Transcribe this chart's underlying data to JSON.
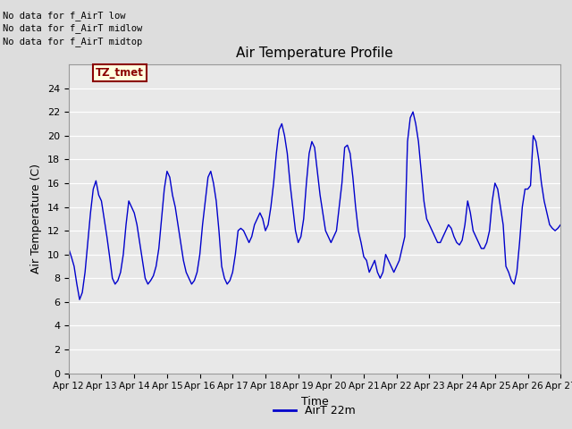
{
  "title": "Air Temperature Profile",
  "xlabel": "Time",
  "ylabel": "Air Temperature (C)",
  "line_color": "#0000cc",
  "line_label": "AirT 22m",
  "ylim": [
    0,
    26
  ],
  "yticks": [
    0,
    2,
    4,
    6,
    8,
    10,
    12,
    14,
    16,
    18,
    20,
    22,
    24
  ],
  "background_color": "#dddddd",
  "plot_bg_color": "#e8e8e8",
  "text_annotations": [
    "No data for f_AirT low",
    "No data for f_AirT midlow",
    "No data for f_AirT midtop"
  ],
  "tz_label": "TZ_tmet",
  "x_tick_labels": [
    "Apr 12",
    "Apr 13",
    "Apr 14",
    "Apr 15",
    "Apr 16",
    "Apr 17",
    "Apr 18",
    "Apr 19",
    "Apr 20",
    "Apr 21",
    "Apr 22",
    "Apr 23",
    "Apr 24",
    "Apr 25",
    "Apr 26",
    "Apr 27"
  ],
  "time_values": [
    0,
    24,
    48,
    72,
    96,
    120,
    144,
    168,
    192,
    216,
    240,
    264,
    288,
    312,
    336,
    360
  ],
  "temperature_data_hours": [
    0,
    2,
    4,
    6,
    8,
    10,
    12,
    14,
    16,
    18,
    20,
    22,
    24,
    26,
    28,
    30,
    32,
    34,
    36,
    38,
    40,
    42,
    44,
    46,
    48,
    50,
    52,
    54,
    56,
    58,
    60,
    62,
    64,
    66,
    68,
    70,
    72,
    74,
    76,
    78,
    80,
    82,
    84,
    86,
    88,
    90,
    92,
    94,
    96,
    98,
    100,
    102,
    104,
    106,
    108,
    110,
    112,
    114,
    116,
    118,
    120,
    122,
    124,
    126,
    128,
    130,
    132,
    134,
    136,
    138,
    140,
    142,
    144,
    146,
    148,
    150,
    152,
    154,
    156,
    158,
    160,
    162,
    164,
    166,
    168,
    170,
    172,
    174,
    176,
    178,
    180,
    182,
    184,
    186,
    188,
    190,
    192,
    194,
    196,
    198,
    200,
    202,
    204,
    206,
    208,
    210,
    212,
    214,
    216,
    218,
    220,
    222,
    224,
    226,
    228,
    230,
    232,
    234,
    236,
    238,
    240,
    242,
    244,
    246,
    248,
    250,
    252,
    254,
    256,
    258,
    260,
    262,
    264,
    266,
    268,
    270,
    272,
    274,
    276,
    278,
    280,
    282,
    284,
    286,
    288,
    290,
    292,
    294,
    296,
    298,
    300,
    302,
    304,
    306,
    308,
    310,
    312,
    314,
    316,
    318,
    320,
    322,
    324,
    326,
    328,
    330,
    332,
    334,
    336,
    338,
    340,
    342,
    344,
    346,
    348,
    350,
    352,
    354,
    356,
    358,
    360
  ],
  "temperature_data_values": [
    10.5,
    9.8,
    9.0,
    7.5,
    6.2,
    6.8,
    8.5,
    11.0,
    13.5,
    15.5,
    16.2,
    15.0,
    14.5,
    13.0,
    11.5,
    9.8,
    8.0,
    7.5,
    7.8,
    8.5,
    10.0,
    12.5,
    14.5,
    14.0,
    13.5,
    12.5,
    11.0,
    9.5,
    8.0,
    7.5,
    7.8,
    8.2,
    9.0,
    10.5,
    13.0,
    15.5,
    17.0,
    16.5,
    15.0,
    14.0,
    12.5,
    11.0,
    9.5,
    8.5,
    8.0,
    7.5,
    7.8,
    8.5,
    10.0,
    12.5,
    14.5,
    16.5,
    17.0,
    16.0,
    14.5,
    12.0,
    9.0,
    8.0,
    7.5,
    7.8,
    8.5,
    10.0,
    12.0,
    12.2,
    12.0,
    11.5,
    11.0,
    11.5,
    12.5,
    13.0,
    13.5,
    13.0,
    12.0,
    12.5,
    14.0,
    16.0,
    18.5,
    20.5,
    21.0,
    20.0,
    18.5,
    16.0,
    14.0,
    12.0,
    11.0,
    11.5,
    13.0,
    16.0,
    18.5,
    19.5,
    19.0,
    17.0,
    15.0,
    13.5,
    12.0,
    11.5,
    11.0,
    11.5,
    12.0,
    14.0,
    16.0,
    19.0,
    19.2,
    18.5,
    16.5,
    14.0,
    12.0,
    11.0,
    9.8,
    9.5,
    8.5,
    9.0,
    9.5,
    8.5,
    8.0,
    8.5,
    10.0,
    9.5,
    9.0,
    8.5,
    9.0,
    9.5,
    10.5,
    11.5,
    19.5,
    21.5,
    22.0,
    21.0,
    19.5,
    17.0,
    14.5,
    13.0,
    12.5,
    12.0,
    11.5,
    11.0,
    11.0,
    11.5,
    12.0,
    12.5,
    12.2,
    11.5,
    11.0,
    10.8,
    11.2,
    12.5,
    14.5,
    13.5,
    12.0,
    11.5,
    11.0,
    10.5,
    10.5,
    11.0,
    12.0,
    14.5,
    16.0,
    15.5,
    14.0,
    12.5,
    9.0,
    8.5,
    7.8,
    7.5,
    8.5,
    11.0,
    14.0,
    15.5,
    15.5,
    15.8,
    20.0,
    19.5,
    18.0,
    16.0,
    14.5,
    13.5,
    12.5,
    12.2,
    12.0,
    12.2,
    12.5
  ]
}
